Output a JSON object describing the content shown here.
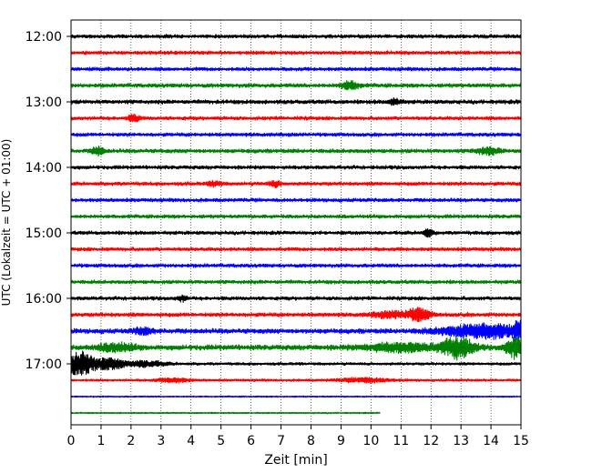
{
  "chart_data": {
    "type": "line",
    "title": "",
    "xlabel": "Zeit  [min]",
    "ylabel": "UTC (Lokalzeit = UTC + 01:00)",
    "xlim": [
      0,
      15
    ],
    "x_ticks": [
      "0",
      "1",
      "2",
      "3",
      "4",
      "5",
      "6",
      "7",
      "8",
      "9",
      "10",
      "11",
      "12",
      "13",
      "14",
      "15"
    ],
    "y_ticks": [
      "12:00",
      "13:00",
      "14:00",
      "15:00",
      "16:00",
      "17:00"
    ],
    "grid": "vertical dotted at each minute",
    "series_colors": [
      "#000000",
      "#ff0000",
      "#0000ff",
      "#008000"
    ],
    "traces": [
      {
        "start": "12:00",
        "color": "#000000",
        "end_min": 15,
        "amplitude": 0.9,
        "events": []
      },
      {
        "start": "12:15",
        "color": "#ff0000",
        "end_min": 15,
        "amplitude": 0.9,
        "events": []
      },
      {
        "start": "12:30",
        "color": "#0000ff",
        "end_min": 15,
        "amplitude": 0.9,
        "events": []
      },
      {
        "start": "12:45",
        "color": "#008000",
        "end_min": 15,
        "amplitude": 1.0,
        "events": [
          {
            "t": 9.3,
            "amp": 2.5,
            "width": 0.3
          }
        ]
      },
      {
        "start": "13:00",
        "color": "#000000",
        "end_min": 15,
        "amplitude": 1.0,
        "events": [
          {
            "t": 10.8,
            "amp": 2.0,
            "width": 0.2
          }
        ]
      },
      {
        "start": "13:15",
        "color": "#ff0000",
        "end_min": 15,
        "amplitude": 0.9,
        "events": [
          {
            "t": 2.1,
            "amp": 2.0,
            "width": 0.2
          }
        ]
      },
      {
        "start": "13:30",
        "color": "#0000ff",
        "end_min": 15,
        "amplitude": 0.9,
        "events": []
      },
      {
        "start": "13:45",
        "color": "#008000",
        "end_min": 15,
        "amplitude": 1.0,
        "events": [
          {
            "t": 0.9,
            "amp": 2.5,
            "width": 0.2
          },
          {
            "t": 13.9,
            "amp": 2.0,
            "width": 0.4
          }
        ]
      },
      {
        "start": "14:00",
        "color": "#000000",
        "end_min": 15,
        "amplitude": 0.9,
        "events": []
      },
      {
        "start": "14:15",
        "color": "#ff0000",
        "end_min": 15,
        "amplitude": 0.9,
        "events": [
          {
            "t": 4.8,
            "amp": 1.8,
            "width": 0.2
          },
          {
            "t": 6.8,
            "amp": 1.8,
            "width": 0.2
          }
        ]
      },
      {
        "start": "14:30",
        "color": "#0000ff",
        "end_min": 15,
        "amplitude": 0.9,
        "events": []
      },
      {
        "start": "14:45",
        "color": "#008000",
        "end_min": 15,
        "amplitude": 0.9,
        "events": []
      },
      {
        "start": "15:00",
        "color": "#000000",
        "end_min": 15,
        "amplitude": 0.9,
        "events": [
          {
            "t": 11.9,
            "amp": 2.5,
            "width": 0.15
          }
        ]
      },
      {
        "start": "15:15",
        "color": "#ff0000",
        "end_min": 15,
        "amplitude": 0.9,
        "events": []
      },
      {
        "start": "15:30",
        "color": "#0000ff",
        "end_min": 15,
        "amplitude": 0.9,
        "events": []
      },
      {
        "start": "15:45",
        "color": "#008000",
        "end_min": 15,
        "amplitude": 0.9,
        "events": []
      },
      {
        "start": "16:00",
        "color": "#000000",
        "end_min": 15,
        "amplitude": 0.9,
        "events": [
          {
            "t": 3.7,
            "amp": 1.8,
            "width": 0.15
          }
        ]
      },
      {
        "start": "16:15",
        "color": "#ff0000",
        "end_min": 15,
        "amplitude": 1.0,
        "events": [
          {
            "t": 11.6,
            "amp": 4.0,
            "width": 0.35
          },
          {
            "t": 10.7,
            "amp": 2.0,
            "width": 0.6
          }
        ]
      },
      {
        "start": "16:30",
        "color": "#0000ff",
        "end_min": 15,
        "amplitude": 1.2,
        "events": [
          {
            "t": 2.4,
            "amp": 2.0,
            "width": 0.3
          },
          {
            "t": 13.8,
            "amp": 4.5,
            "width": 1.4
          },
          {
            "t": 14.9,
            "amp": 5.0,
            "width": 0.15
          }
        ]
      },
      {
        "start": "16:45",
        "color": "#008000",
        "end_min": 15,
        "amplitude": 1.3,
        "events": [
          {
            "t": 1.5,
            "amp": 2.5,
            "width": 0.6
          },
          {
            "t": 12.9,
            "amp": 7.0,
            "width": 0.5
          },
          {
            "t": 14.8,
            "amp": 7.0,
            "width": 0.3
          },
          {
            "t": 11.0,
            "amp": 2.5,
            "width": 1.2
          }
        ]
      },
      {
        "start": "17:00",
        "color": "#000000",
        "end_min": 15,
        "amplitude": 0.7,
        "events": [
          {
            "t": 0.3,
            "amp": 8.0,
            "width": 0.5
          },
          {
            "t": 1.3,
            "amp": 3.5,
            "width": 0.5
          },
          {
            "t": 2.5,
            "amp": 2.0,
            "width": 0.6
          }
        ]
      },
      {
        "start": "17:15",
        "color": "#ff0000",
        "end_min": 15,
        "amplitude": 0.6,
        "events": [
          {
            "t": 9.8,
            "amp": 1.5,
            "width": 0.8
          },
          {
            "t": 3.4,
            "amp": 1.5,
            "width": 0.5
          }
        ]
      },
      {
        "start": "17:30",
        "color": "#0000ff",
        "end_min": 15,
        "amplitude": 0.35,
        "events": []
      },
      {
        "start": "17:45",
        "color": "#008000",
        "end_min": 10.3,
        "amplitude": 0.35,
        "events": []
      }
    ]
  }
}
